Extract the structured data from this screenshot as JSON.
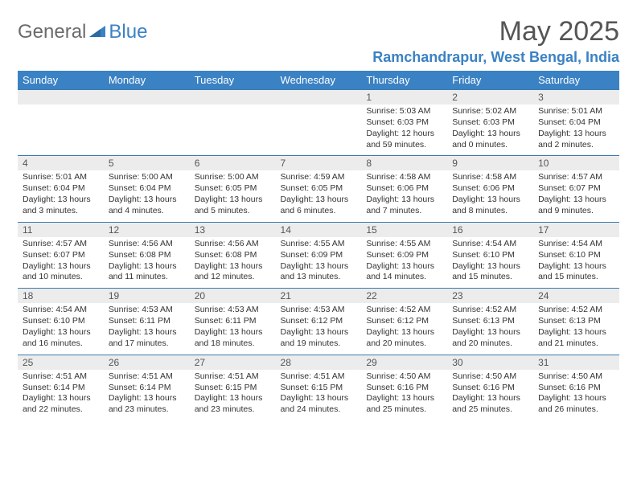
{
  "logo": {
    "general": "General",
    "blue": "Blue"
  },
  "header": {
    "month": "May 2025",
    "location": "Ramchandrapur, West Bengal, India"
  },
  "colors": {
    "header_bg": "#3b82c4",
    "header_text": "#ffffff",
    "row_border": "#3b7bb0",
    "daynum_bg": "#ececec",
    "logo_gray": "#6b6b6b",
    "logo_blue": "#3b82c4",
    "title_color": "#555555",
    "body_text": "#333333",
    "page_bg": "#ffffff"
  },
  "dayNames": [
    "Sunday",
    "Monday",
    "Tuesday",
    "Wednesday",
    "Thursday",
    "Friday",
    "Saturday"
  ],
  "weeks": [
    [
      {
        "num": "",
        "lines": []
      },
      {
        "num": "",
        "lines": []
      },
      {
        "num": "",
        "lines": []
      },
      {
        "num": "",
        "lines": []
      },
      {
        "num": "1",
        "lines": [
          "Sunrise: 5:03 AM",
          "Sunset: 6:03 PM",
          "Daylight: 12 hours and 59 minutes."
        ]
      },
      {
        "num": "2",
        "lines": [
          "Sunrise: 5:02 AM",
          "Sunset: 6:03 PM",
          "Daylight: 13 hours and 0 minutes."
        ]
      },
      {
        "num": "3",
        "lines": [
          "Sunrise: 5:01 AM",
          "Sunset: 6:04 PM",
          "Daylight: 13 hours and 2 minutes."
        ]
      }
    ],
    [
      {
        "num": "4",
        "lines": [
          "Sunrise: 5:01 AM",
          "Sunset: 6:04 PM",
          "Daylight: 13 hours and 3 minutes."
        ]
      },
      {
        "num": "5",
        "lines": [
          "Sunrise: 5:00 AM",
          "Sunset: 6:04 PM",
          "Daylight: 13 hours and 4 minutes."
        ]
      },
      {
        "num": "6",
        "lines": [
          "Sunrise: 5:00 AM",
          "Sunset: 6:05 PM",
          "Daylight: 13 hours and 5 minutes."
        ]
      },
      {
        "num": "7",
        "lines": [
          "Sunrise: 4:59 AM",
          "Sunset: 6:05 PM",
          "Daylight: 13 hours and 6 minutes."
        ]
      },
      {
        "num": "8",
        "lines": [
          "Sunrise: 4:58 AM",
          "Sunset: 6:06 PM",
          "Daylight: 13 hours and 7 minutes."
        ]
      },
      {
        "num": "9",
        "lines": [
          "Sunrise: 4:58 AM",
          "Sunset: 6:06 PM",
          "Daylight: 13 hours and 8 minutes."
        ]
      },
      {
        "num": "10",
        "lines": [
          "Sunrise: 4:57 AM",
          "Sunset: 6:07 PM",
          "Daylight: 13 hours and 9 minutes."
        ]
      }
    ],
    [
      {
        "num": "11",
        "lines": [
          "Sunrise: 4:57 AM",
          "Sunset: 6:07 PM",
          "Daylight: 13 hours and 10 minutes."
        ]
      },
      {
        "num": "12",
        "lines": [
          "Sunrise: 4:56 AM",
          "Sunset: 6:08 PM",
          "Daylight: 13 hours and 11 minutes."
        ]
      },
      {
        "num": "13",
        "lines": [
          "Sunrise: 4:56 AM",
          "Sunset: 6:08 PM",
          "Daylight: 13 hours and 12 minutes."
        ]
      },
      {
        "num": "14",
        "lines": [
          "Sunrise: 4:55 AM",
          "Sunset: 6:09 PM",
          "Daylight: 13 hours and 13 minutes."
        ]
      },
      {
        "num": "15",
        "lines": [
          "Sunrise: 4:55 AM",
          "Sunset: 6:09 PM",
          "Daylight: 13 hours and 14 minutes."
        ]
      },
      {
        "num": "16",
        "lines": [
          "Sunrise: 4:54 AM",
          "Sunset: 6:10 PM",
          "Daylight: 13 hours and 15 minutes."
        ]
      },
      {
        "num": "17",
        "lines": [
          "Sunrise: 4:54 AM",
          "Sunset: 6:10 PM",
          "Daylight: 13 hours and 15 minutes."
        ]
      }
    ],
    [
      {
        "num": "18",
        "lines": [
          "Sunrise: 4:54 AM",
          "Sunset: 6:10 PM",
          "Daylight: 13 hours and 16 minutes."
        ]
      },
      {
        "num": "19",
        "lines": [
          "Sunrise: 4:53 AM",
          "Sunset: 6:11 PM",
          "Daylight: 13 hours and 17 minutes."
        ]
      },
      {
        "num": "20",
        "lines": [
          "Sunrise: 4:53 AM",
          "Sunset: 6:11 PM",
          "Daylight: 13 hours and 18 minutes."
        ]
      },
      {
        "num": "21",
        "lines": [
          "Sunrise: 4:53 AM",
          "Sunset: 6:12 PM",
          "Daylight: 13 hours and 19 minutes."
        ]
      },
      {
        "num": "22",
        "lines": [
          "Sunrise: 4:52 AM",
          "Sunset: 6:12 PM",
          "Daylight: 13 hours and 20 minutes."
        ]
      },
      {
        "num": "23",
        "lines": [
          "Sunrise: 4:52 AM",
          "Sunset: 6:13 PM",
          "Daylight: 13 hours and 20 minutes."
        ]
      },
      {
        "num": "24",
        "lines": [
          "Sunrise: 4:52 AM",
          "Sunset: 6:13 PM",
          "Daylight: 13 hours and 21 minutes."
        ]
      }
    ],
    [
      {
        "num": "25",
        "lines": [
          "Sunrise: 4:51 AM",
          "Sunset: 6:14 PM",
          "Daylight: 13 hours and 22 minutes."
        ]
      },
      {
        "num": "26",
        "lines": [
          "Sunrise: 4:51 AM",
          "Sunset: 6:14 PM",
          "Daylight: 13 hours and 23 minutes."
        ]
      },
      {
        "num": "27",
        "lines": [
          "Sunrise: 4:51 AM",
          "Sunset: 6:15 PM",
          "Daylight: 13 hours and 23 minutes."
        ]
      },
      {
        "num": "28",
        "lines": [
          "Sunrise: 4:51 AM",
          "Sunset: 6:15 PM",
          "Daylight: 13 hours and 24 minutes."
        ]
      },
      {
        "num": "29",
        "lines": [
          "Sunrise: 4:50 AM",
          "Sunset: 6:16 PM",
          "Daylight: 13 hours and 25 minutes."
        ]
      },
      {
        "num": "30",
        "lines": [
          "Sunrise: 4:50 AM",
          "Sunset: 6:16 PM",
          "Daylight: 13 hours and 25 minutes."
        ]
      },
      {
        "num": "31",
        "lines": [
          "Sunrise: 4:50 AM",
          "Sunset: 6:16 PM",
          "Daylight: 13 hours and 26 minutes."
        ]
      }
    ]
  ]
}
